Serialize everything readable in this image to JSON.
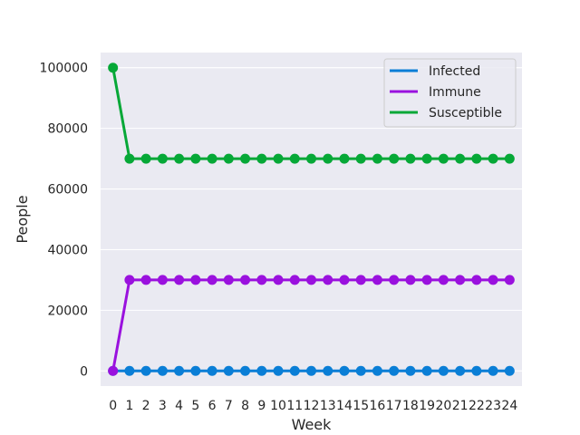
{
  "chart_data": {
    "type": "line",
    "title": "",
    "xlabel": "Week",
    "ylabel": "People",
    "x": [
      0,
      1,
      2,
      3,
      4,
      5,
      6,
      7,
      8,
      9,
      10,
      11,
      12,
      13,
      14,
      15,
      16,
      17,
      18,
      19,
      20,
      21,
      22,
      23,
      24
    ],
    "xlim": [
      -0.75,
      24.75
    ],
    "ylim": [
      -5000,
      105000
    ],
    "yticks": [
      0,
      20000,
      40000,
      60000,
      80000,
      100000
    ],
    "ytick_labels": [
      "0",
      "20000",
      "40000",
      "60000",
      "80000",
      "100000"
    ],
    "grid": true,
    "legend_position": "top-right",
    "markers": "circle",
    "series": [
      {
        "name": "Infected",
        "color": "#0a7ed6",
        "values": [
          0,
          0,
          0,
          0,
          0,
          0,
          0,
          0,
          0,
          0,
          0,
          0,
          0,
          0,
          0,
          0,
          0,
          0,
          0,
          0,
          0,
          0,
          0,
          0,
          0
        ]
      },
      {
        "name": "Immune",
        "color": "#9a11de",
        "values": [
          0,
          30000,
          30000,
          30000,
          30000,
          30000,
          30000,
          30000,
          30000,
          30000,
          30000,
          30000,
          30000,
          30000,
          30000,
          30000,
          30000,
          30000,
          30000,
          30000,
          30000,
          30000,
          30000,
          30000,
          30000
        ]
      },
      {
        "name": "Susceptible",
        "color": "#06a837",
        "values": [
          100000,
          70000,
          70000,
          70000,
          70000,
          70000,
          70000,
          70000,
          70000,
          70000,
          70000,
          70000,
          70000,
          70000,
          70000,
          70000,
          70000,
          70000,
          70000,
          70000,
          70000,
          70000,
          70000,
          70000,
          70000
        ]
      }
    ],
    "colors": {
      "plot_background": "#eaeaf2",
      "grid": "#ffffff",
      "legend_background": "#eaeaf2",
      "legend_border": "#cccccc"
    }
  }
}
